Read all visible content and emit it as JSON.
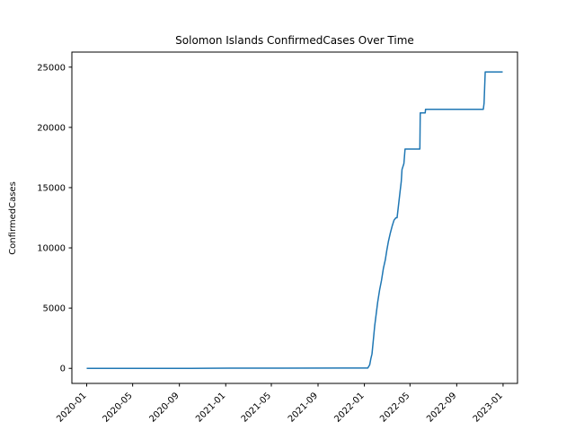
{
  "chart_data": {
    "type": "line",
    "title": "Solomon Islands  ConfirmedCases Over Time",
    "xlabel": "",
    "ylabel": "ConfirmedCases",
    "xlim": [
      "2019-11-23",
      "2023-02-08"
    ],
    "ylim": [
      -1250,
      26250
    ],
    "x_ticks": [
      "2020-01",
      "2020-05",
      "2020-09",
      "2021-01",
      "2021-05",
      "2021-09",
      "2022-01",
      "2022-05",
      "2022-09",
      "2023-01"
    ],
    "y_ticks": [
      0,
      5000,
      10000,
      15000,
      20000,
      25000
    ],
    "grid": false,
    "line_color": "#1f77b4",
    "series": [
      {
        "x": [
          "2020-01-01",
          "2020-10-01",
          "2020-11-15",
          "2021-06-01",
          "2021-12-01",
          "2022-01-10",
          "2022-01-15",
          "2022-01-18",
          "2022-01-21",
          "2022-01-25",
          "2022-01-28",
          "2022-02-01",
          "2022-02-05",
          "2022-02-10",
          "2022-02-15",
          "2022-02-20",
          "2022-02-25",
          "2022-03-01",
          "2022-03-05",
          "2022-03-10",
          "2022-03-15",
          "2022-03-20",
          "2022-03-25",
          "2022-03-28",
          "2022-04-05",
          "2022-04-08",
          "2022-04-10",
          "2022-04-15",
          "2022-04-18",
          "2022-04-20",
          "2022-05-01",
          "2022-05-05",
          "2022-05-10",
          "2022-05-15",
          "2022-05-20",
          "2022-05-27",
          "2022-05-28",
          "2022-06-10",
          "2022-06-11",
          "2022-07-01",
          "2022-10-01",
          "2022-11-10",
          "2022-11-12",
          "2022-11-15",
          "2022-12-31"
        ],
        "y": [
          0,
          0,
          10,
          20,
          25,
          30,
          300,
          800,
          1200,
          2500,
          3500,
          4500,
          5500,
          6500,
          7300,
          8300,
          9000,
          9800,
          10500,
          11200,
          11800,
          12300,
          12500,
          12500,
          14700,
          15500,
          16500,
          17000,
          18200,
          18200,
          18200,
          18200,
          18200,
          18200,
          18200,
          18200,
          21200,
          21200,
          21500,
          21500,
          21500,
          21500,
          22000,
          24600,
          24600
        ]
      }
    ]
  }
}
